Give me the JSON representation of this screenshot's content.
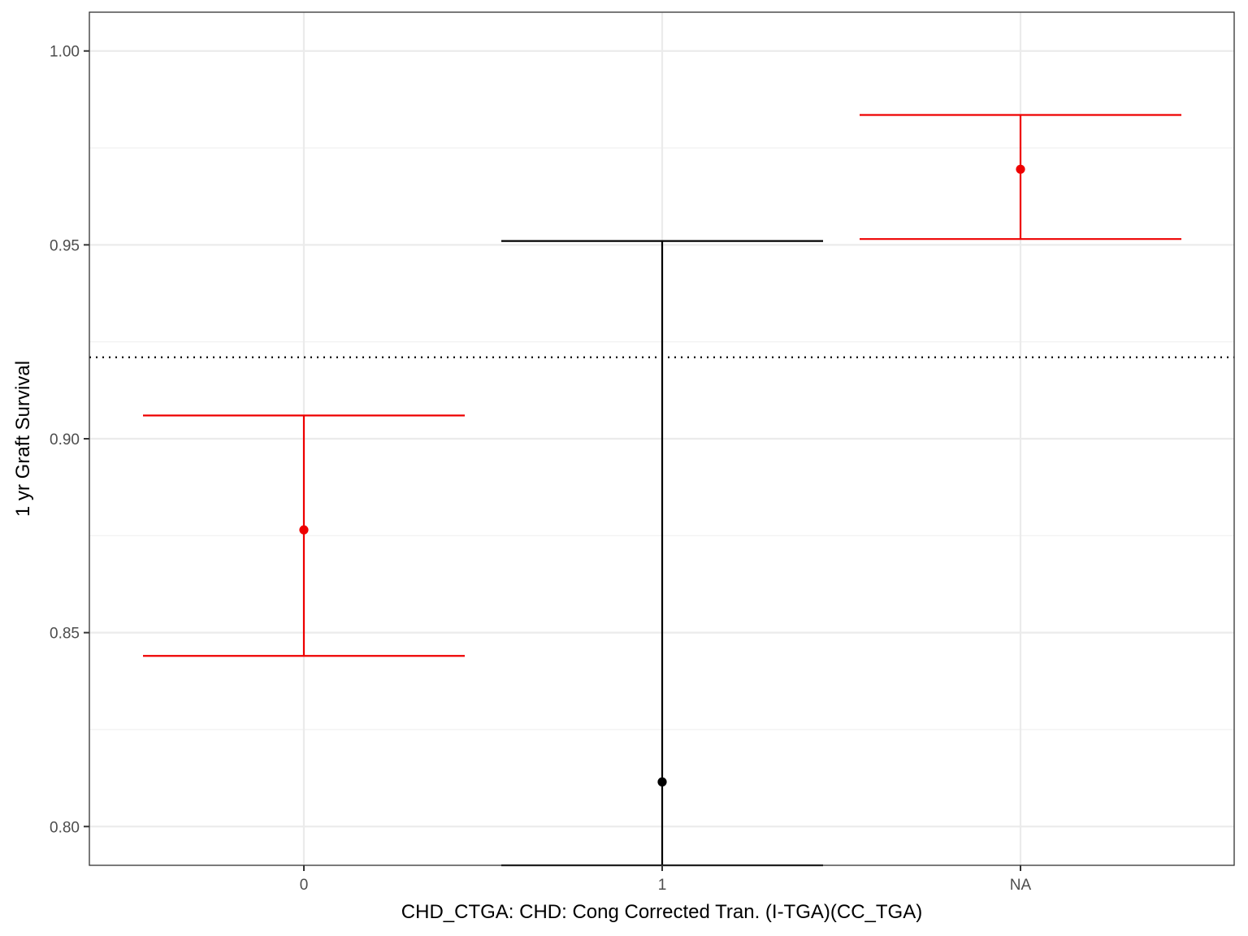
{
  "chart_data": {
    "type": "errorbar",
    "title": "",
    "xlabel": "CHD_CTGA: CHD: Cong Corrected Tran. (I-TGA)(CC_TGA)",
    "ylabel": "1 yr Graft Survival",
    "categories": [
      "0",
      "1",
      "NA"
    ],
    "ylim": [
      0.79,
      1.01
    ],
    "yticks": [
      0.8,
      0.85,
      0.9,
      0.95,
      1.0
    ],
    "ytick_labels": [
      "0.80",
      "0.85",
      "0.90",
      "0.95",
      "1.00"
    ],
    "reference_line": {
      "y": 0.921,
      "style": "dotted",
      "color": "#000000"
    },
    "points": [
      {
        "category": "0",
        "estimate": 0.8765,
        "lower": 0.844,
        "upper": 0.906,
        "color": "#ee0000"
      },
      {
        "category": "1",
        "estimate": 0.8115,
        "lower": 0.79,
        "upper": 0.951,
        "color": "#000000"
      },
      {
        "category": "NA",
        "estimate": 0.9695,
        "lower": 0.9515,
        "upper": 0.9835,
        "color": "#ee0000"
      }
    ],
    "grid": true,
    "theme": "bw"
  }
}
